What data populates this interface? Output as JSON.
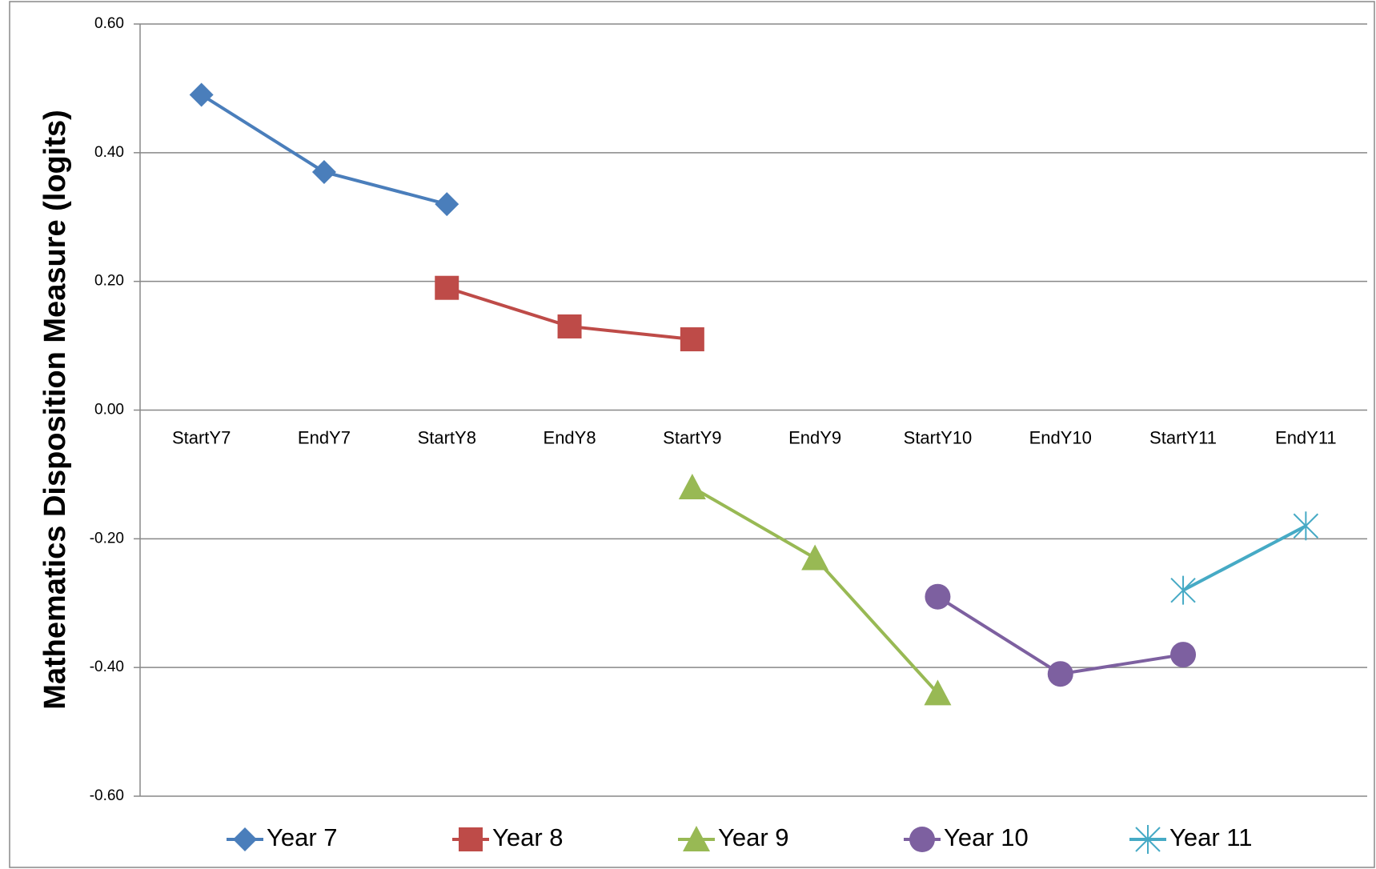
{
  "chart_data": {
    "type": "line",
    "y_label": "Mathematics Disposition Measure (logits)",
    "categories": [
      "StartY7",
      "EndY7",
      "StartY8",
      "EndY8",
      "StartY9",
      "EndY9",
      "StartY10",
      "EndY10",
      "StartY11",
      "EndY11"
    ],
    "series": [
      {
        "name": "Year 7",
        "color": "#4a7ebb",
        "marker": "diamond",
        "values": [
          0.49,
          0.37,
          0.32,
          null,
          null,
          null,
          null,
          null,
          null,
          null
        ]
      },
      {
        "name": "Year 8",
        "color": "#be4b48",
        "marker": "square",
        "values": [
          null,
          null,
          0.19,
          0.13,
          0.11,
          null,
          null,
          null,
          null,
          null
        ]
      },
      {
        "name": "Year 9",
        "color": "#98b954",
        "marker": "triangle",
        "values": [
          null,
          null,
          null,
          null,
          -0.12,
          -0.23,
          -0.44,
          null,
          null,
          null
        ]
      },
      {
        "name": "Year 10",
        "color": "#7d60a0",
        "marker": "circle",
        "values": [
          null,
          null,
          null,
          null,
          null,
          null,
          -0.29,
          -0.41,
          -0.38,
          null
        ]
      },
      {
        "name": "Year 11",
        "color": "#46aac5",
        "marker": "star",
        "values": [
          null,
          null,
          null,
          null,
          null,
          null,
          null,
          null,
          -0.28,
          -0.18
        ]
      }
    ],
    "ylim": [
      -0.6,
      0.6
    ],
    "yticks": [
      {
        "value": -0.6,
        "label": "-0.60"
      },
      {
        "value": -0.4,
        "label": "-0.40"
      },
      {
        "value": -0.2,
        "label": "-0.20"
      },
      {
        "value": 0,
        "label": "0.00"
      },
      {
        "value": 0.2,
        "label": "0.20"
      },
      {
        "value": 0.4,
        "label": "0.40"
      },
      {
        "value": 0.6,
        "label": "0.60"
      }
    ],
    "grid": true,
    "legend": "bottom"
  }
}
